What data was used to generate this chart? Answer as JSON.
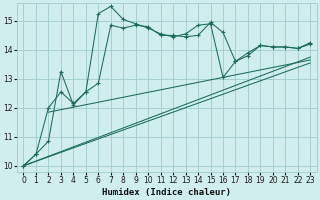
{
  "bg_color": "#d0eeee",
  "grid_color": "#a0cccc",
  "line_color": "#1a6b5a",
  "marker": "+",
  "xlabel": "Humidex (Indice chaleur)",
  "ylim": [
    9.8,
    15.6
  ],
  "xlim": [
    -0.5,
    23.5
  ],
  "yticks": [
    10,
    11,
    12,
    13,
    14,
    15
  ],
  "xticks": [
    0,
    1,
    2,
    3,
    4,
    5,
    6,
    7,
    8,
    9,
    10,
    11,
    12,
    13,
    14,
    15,
    16,
    17,
    18,
    19,
    20,
    21,
    22,
    23
  ],
  "curve1_x": [
    0,
    1,
    2,
    3,
    4,
    5,
    6,
    7,
    8,
    9,
    10,
    11,
    12,
    13,
    14,
    15,
    16,
    17,
    18,
    19,
    20,
    21,
    22,
    23
  ],
  "curve1_y": [
    10.0,
    10.4,
    10.85,
    13.25,
    12.1,
    12.55,
    15.25,
    15.5,
    15.05,
    14.9,
    14.75,
    14.55,
    14.45,
    14.55,
    14.85,
    14.9,
    13.05,
    13.6,
    13.9,
    14.15,
    14.1,
    14.1,
    14.05,
    14.25
  ],
  "curve2_x": [
    0,
    1,
    2,
    3,
    4,
    5,
    6,
    7,
    8,
    9,
    10,
    11,
    12,
    13,
    14,
    15,
    16,
    17,
    18,
    19,
    20,
    21,
    22,
    23
  ],
  "curve2_y": [
    10.0,
    10.4,
    12.0,
    12.55,
    12.15,
    12.55,
    12.85,
    14.85,
    14.75,
    14.85,
    14.8,
    14.5,
    14.5,
    14.45,
    14.5,
    14.95,
    14.6,
    13.6,
    13.8,
    14.15,
    14.1,
    14.1,
    14.05,
    14.2
  ],
  "line1_x": [
    0,
    23
  ],
  "line1_y": [
    10.0,
    13.55
  ],
  "line2_x": [
    0,
    23
  ],
  "line2_y": [
    10.0,
    13.75
  ],
  "line3_x": [
    2,
    23
  ],
  "line3_y": [
    11.85,
    13.65
  ]
}
